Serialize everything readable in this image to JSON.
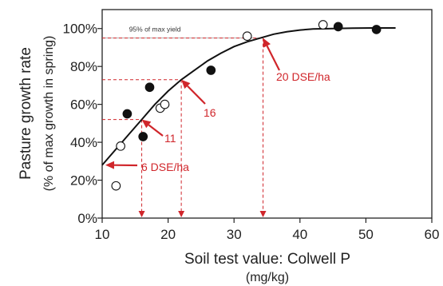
{
  "chart_data": {
    "type": "scatter",
    "xlabel": "Soil test value:  Colwell P",
    "xunit": "(mg/kg)",
    "ylabel": "Pasture growth rate",
    "ylabel2": "(% of max growth in spring)",
    "xlim": [
      10,
      60
    ],
    "ylim": [
      0,
      110
    ],
    "x_ticks": [
      10,
      20,
      30,
      40,
      50,
      60
    ],
    "y_ticks": [
      0,
      20,
      40,
      60,
      80,
      100
    ],
    "y_tick_labels": [
      "0%",
      "20%",
      "40%",
      "60%",
      "80%",
      "100%"
    ],
    "series": [
      {
        "marker": "filled",
        "points": [
          [
            13.8,
            55
          ],
          [
            16.2,
            43
          ],
          [
            17.2,
            69
          ],
          [
            26.5,
            78
          ],
          [
            45.8,
            101
          ],
          [
            51.6,
            99.5
          ]
        ]
      },
      {
        "marker": "open",
        "points": [
          [
            12.1,
            17
          ],
          [
            12.8,
            38
          ],
          [
            18.8,
            58
          ],
          [
            19.5,
            60
          ],
          [
            32,
            96
          ],
          [
            43.5,
            102
          ]
        ]
      }
    ],
    "curve": [
      [
        10,
        28
      ],
      [
        12,
        36
      ],
      [
        14,
        44
      ],
      [
        16,
        52
      ],
      [
        18,
        60
      ],
      [
        20,
        67
      ],
      [
        22,
        73
      ],
      [
        24,
        78
      ],
      [
        26,
        83
      ],
      [
        28,
        87
      ],
      [
        30,
        90.5
      ],
      [
        32,
        93
      ],
      [
        34,
        95
      ],
      [
        36,
        97
      ],
      [
        38,
        98.3
      ],
      [
        40,
        99.2
      ],
      [
        42,
        99.8
      ],
      [
        45,
        100
      ],
      [
        48,
        100.2
      ],
      [
        51,
        100.3
      ],
      [
        54.5,
        100.3
      ]
    ],
    "reference_line": {
      "y": 95,
      "label": "95% of max yield"
    },
    "color_annotation": "#d0262b",
    "color_text": "#222222",
    "annotations": [
      {
        "label": "6 DSE/ha",
        "arrow_to": [
          10,
          28
        ],
        "dashed_to": null
      },
      {
        "label": "11",
        "arrow_to": [
          16,
          52
        ],
        "dashed_to": [
          16,
          52
        ]
      },
      {
        "label": "16",
        "arrow_to": [
          22,
          73
        ],
        "dashed_to": [
          22,
          73
        ]
      },
      {
        "label": "20 DSE/ha",
        "arrow_to": [
          34.4,
          95
        ],
        "dashed_to": [
          34.4,
          95
        ]
      }
    ]
  }
}
